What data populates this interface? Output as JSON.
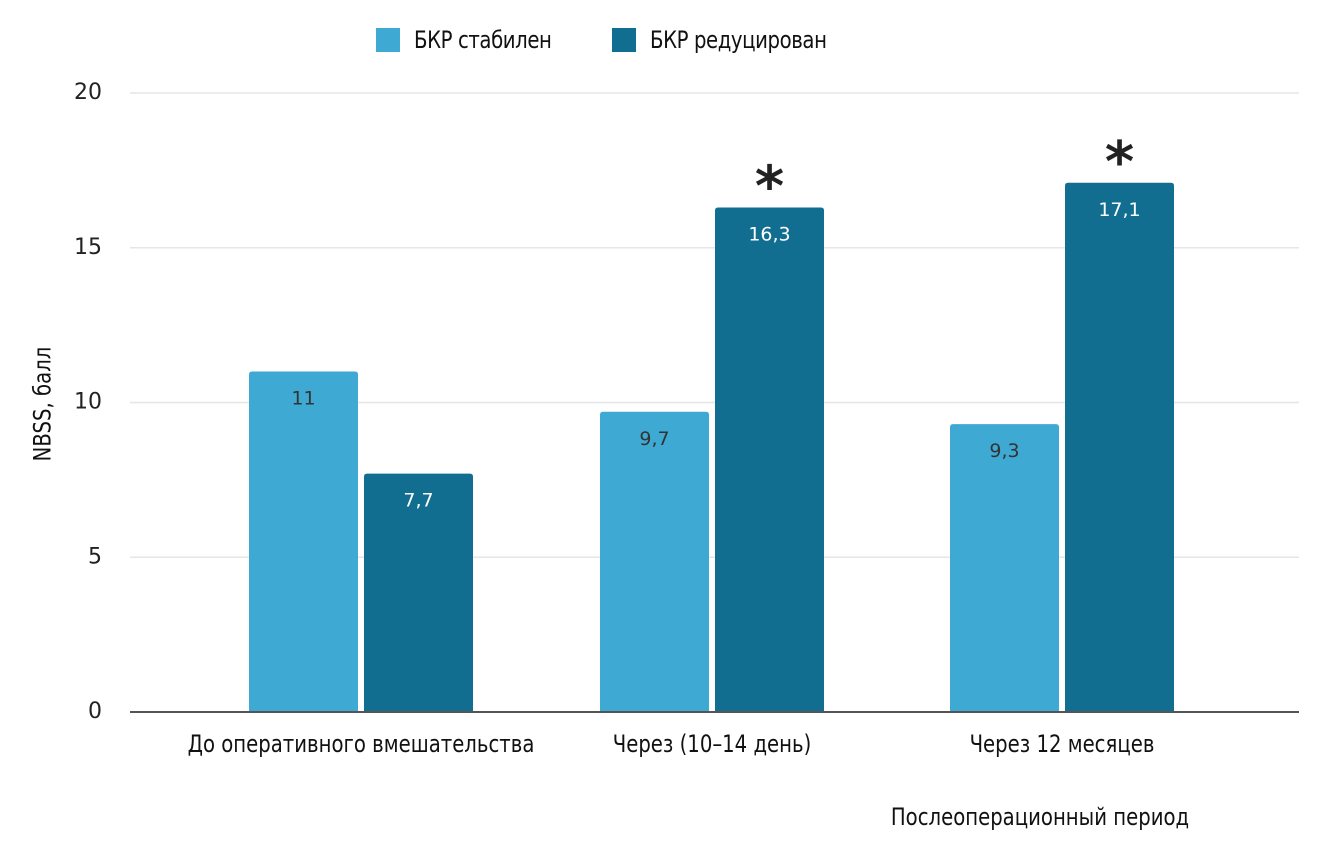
{
  "chart_data": {
    "type": "bar",
    "title": "",
    "xlabel": "Послеоперационный период",
    "ylabel": "NBSS, балл",
    "ylim": [
      0,
      20
    ],
    "yticks": [
      0,
      5,
      10,
      15,
      20
    ],
    "ytick_labels": [
      "0",
      "5",
      "10",
      "15",
      "20"
    ],
    "grid": true,
    "legend_position": "top-center",
    "categories": [
      "До оперативного вмешательства",
      "Через (10–14 день)",
      "Через 12 месяцев"
    ],
    "series": [
      {
        "name": "БКР стабилен",
        "color": "#3eaad3",
        "label_color": "#333333",
        "values": [
          11,
          9.7,
          9.3
        ],
        "data_labels": [
          "11",
          "9,7",
          "9,3"
        ]
      },
      {
        "name": "БКР редуцирован",
        "color": "#116e90",
        "label_color": "#ffffff",
        "values": [
          7.7,
          16.3,
          17.1
        ],
        "data_labels": [
          "7,7",
          "16,3",
          "17,1"
        ]
      }
    ],
    "annotations": [
      {
        "text": "*",
        "series": 1,
        "category": 1
      },
      {
        "text": "*",
        "series": 1,
        "category": 2
      }
    ]
  }
}
